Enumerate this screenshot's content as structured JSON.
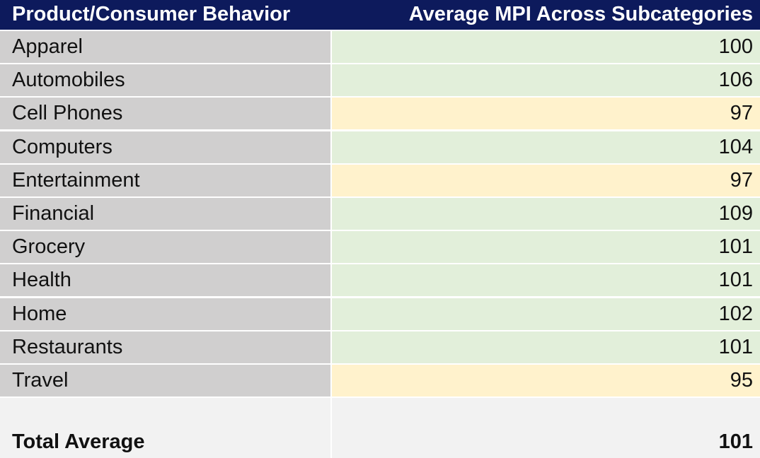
{
  "table": {
    "header": {
      "category": "Product/Consumer Behavior",
      "value": "Average MPI Across Subcategories"
    },
    "total": {
      "label": "Total Average",
      "value": "101"
    }
  },
  "colors": {
    "header_bg": "#0d1a5c",
    "category_bg": "#d0cfcf",
    "value_above_bg": "#e2efda",
    "value_below_bg": "#fff2cc",
    "total_bg": "#f2f2f2"
  },
  "chart_data": {
    "type": "table",
    "columns": [
      "Product/Consumer Behavior",
      "Average MPI Across Subcategories"
    ],
    "categories": [
      "Apparel",
      "Automobiles",
      "Cell Phones",
      "Computers",
      "Entertainment",
      "Financial",
      "Grocery",
      "Health",
      "Home",
      "Restaurants",
      "Travel"
    ],
    "values": [
      100,
      106,
      97,
      104,
      97,
      109,
      101,
      101,
      102,
      101,
      95
    ],
    "total_label": "Total Average",
    "total_value": 101
  }
}
